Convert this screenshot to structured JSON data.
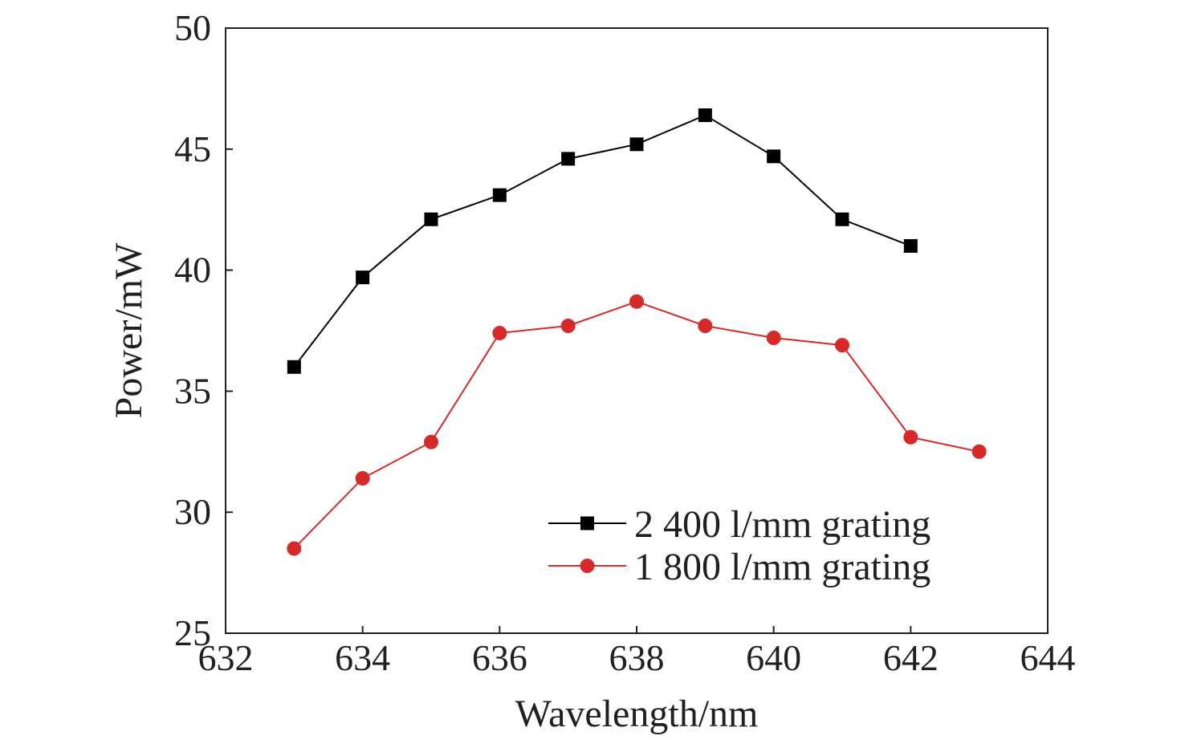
{
  "chart_data": {
    "type": "line",
    "xlabel": "Wavelength/nm",
    "ylabel": "Power/mW",
    "xlim": [
      632,
      644
    ],
    "ylim": [
      25,
      50
    ],
    "x_ticks": [
      632,
      634,
      636,
      638,
      640,
      642,
      644
    ],
    "y_ticks": [
      25,
      30,
      35,
      40,
      45,
      50
    ],
    "x_tick_labels": [
      "632",
      "634",
      "636",
      "638",
      "640",
      "642",
      "644"
    ],
    "y_tick_labels": [
      "25",
      "30",
      "35",
      "40",
      "45",
      "50"
    ],
    "grid": false,
    "legend_position": "bottom-right",
    "series": [
      {
        "name": "2 400 l/mm grating",
        "color": "#000000",
        "marker": "square",
        "x": [
          633,
          634,
          635,
          636,
          637,
          638,
          639,
          640,
          641,
          642
        ],
        "y": [
          36.0,
          39.7,
          42.1,
          43.1,
          44.6,
          45.2,
          46.4,
          44.7,
          42.1,
          41.0
        ]
      },
      {
        "name": "1 800 l/mm grating",
        "color": "#d62a2a",
        "marker": "circle",
        "x": [
          633,
          634,
          635,
          636,
          637,
          638,
          639,
          640,
          641,
          642,
          643
        ],
        "y": [
          28.5,
          31.4,
          32.9,
          37.4,
          37.7,
          38.7,
          37.7,
          37.2,
          36.9,
          33.1,
          32.5
        ]
      }
    ]
  }
}
